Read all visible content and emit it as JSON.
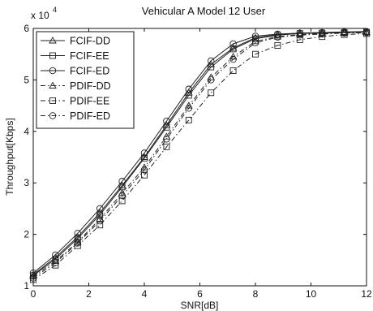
{
  "chart_data": {
    "type": "line",
    "title": "Vehicular A Model 12 User",
    "xlabel": "SNR[dB]",
    "ylabel": "Throughput[Kbps]",
    "y_multiplier_label": "x 10",
    "y_multiplier_exponent": "4",
    "xlim": [
      0,
      12
    ],
    "ylim": [
      1,
      6
    ],
    "x_ticks": [
      "0",
      "2",
      "4",
      "6",
      "8",
      "10",
      "12"
    ],
    "y_ticks": [
      "1",
      "2",
      "3",
      "4",
      "5",
      "6"
    ],
    "grid": false,
    "legend_position": "top-left",
    "x": [
      0,
      0.8,
      1.6,
      2.4,
      3.2,
      4.0,
      4.8,
      5.6,
      6.4,
      7.2,
      8.0,
      8.8,
      9.6,
      10.4,
      11.2,
      12.0
    ],
    "series": [
      {
        "name": "FCIF-DD",
        "marker": "triangle",
        "dash": "solid",
        "values": [
          1.22,
          1.55,
          1.95,
          2.42,
          2.95,
          3.5,
          4.12,
          4.75,
          5.3,
          5.62,
          5.82,
          5.88,
          5.91,
          5.92,
          5.93,
          5.93
        ]
      },
      {
        "name": "FCIF-EE",
        "marker": "square",
        "dash": "solid",
        "values": [
          1.2,
          1.52,
          1.92,
          2.38,
          2.92,
          3.48,
          4.08,
          4.7,
          5.25,
          5.6,
          5.8,
          5.87,
          5.9,
          5.91,
          5.92,
          5.93
        ]
      },
      {
        "name": "FCIF-ED",
        "marker": "circle",
        "dash": "solid",
        "values": [
          1.25,
          1.6,
          2.02,
          2.5,
          3.03,
          3.58,
          4.2,
          4.82,
          5.37,
          5.7,
          5.85,
          5.89,
          5.91,
          5.92,
          5.93,
          5.94
        ]
      },
      {
        "name": "PDIF-DD",
        "marker": "triangle",
        "dash": "dashdot",
        "values": [
          1.18,
          1.48,
          1.85,
          2.3,
          2.8,
          3.3,
          3.9,
          4.5,
          5.05,
          5.45,
          5.75,
          5.84,
          5.88,
          5.9,
          5.91,
          5.92
        ]
      },
      {
        "name": "PDIF-EE",
        "marker": "square",
        "dash": "dashdot",
        "values": [
          1.12,
          1.4,
          1.78,
          2.18,
          2.65,
          3.15,
          3.7,
          4.22,
          4.75,
          5.18,
          5.5,
          5.67,
          5.78,
          5.84,
          5.88,
          5.9
        ]
      },
      {
        "name": "PDIF-ED",
        "marker": "circle",
        "dash": "dashdot",
        "values": [
          1.15,
          1.45,
          1.83,
          2.26,
          2.75,
          3.25,
          3.85,
          4.45,
          5.0,
          5.4,
          5.72,
          5.83,
          5.87,
          5.89,
          5.91,
          5.92
        ]
      }
    ]
  }
}
